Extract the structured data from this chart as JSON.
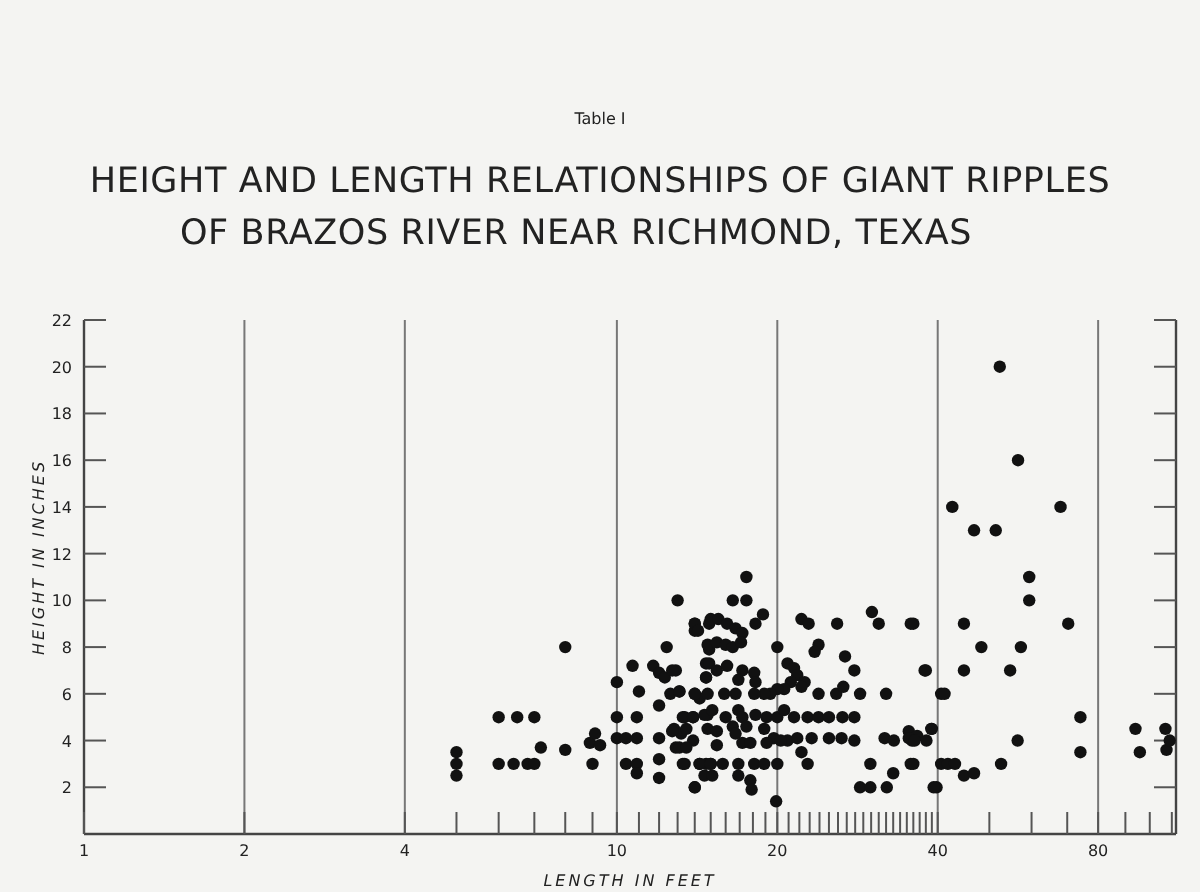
{
  "chart_data": {
    "type": "scatter",
    "title": "HEIGHT AND LENGTH RELATIONSHIPS OF GIANT RIPPLES\nOF BRAZOS RIVER NEAR RICHMOND, TEXAS",
    "annotations": [
      "Table I"
    ],
    "xlabel": "LENGTH IN FEET",
    "ylabel": "HEIGHT IN INCHES",
    "log": "x",
    "grid": "x",
    "marker": "circle",
    "xlim": [
      1,
      112
    ],
    "ylim": [
      0,
      22
    ],
    "xticks": [
      1,
      2,
      4,
      {
        "value": 5,
        "label": null
      },
      {
        "value": 6,
        "label": null
      },
      {
        "value": 7,
        "label": null
      },
      {
        "value": 8,
        "label": null
      },
      {
        "value": 9,
        "label": null
      },
      10,
      {
        "value": 11,
        "label": null
      },
      {
        "value": 12,
        "label": null
      },
      {
        "value": 13,
        "label": null
      },
      {
        "value": 14,
        "label": null
      },
      {
        "value": 15,
        "label": null
      },
      {
        "value": 16,
        "label": null
      },
      {
        "value": 17,
        "label": null
      },
      {
        "value": 18,
        "label": null
      },
      {
        "value": 19,
        "label": null
      },
      20,
      {
        "value": 21,
        "label": null
      },
      {
        "value": 22,
        "label": null
      },
      {
        "value": 23,
        "label": null
      },
      {
        "value": 24,
        "label": null
      },
      {
        "value": 25,
        "label": null
      },
      {
        "value": 26,
        "label": null
      },
      {
        "value": 27,
        "label": null
      },
      {
        "value": 28,
        "label": null
      },
      {
        "value": 29,
        "label": null
      },
      {
        "value": 30,
        "label": null
      },
      {
        "value": 31,
        "label": null
      },
      {
        "value": 32,
        "label": null
      },
      {
        "value": 33,
        "label": null
      },
      {
        "value": 34,
        "label": null
      },
      {
        "value": 35,
        "label": null
      },
      {
        "value": 36,
        "label": null
      },
      {
        "value": 37,
        "label": null
      },
      {
        "value": 38,
        "label": null
      },
      {
        "value": 39,
        "label": null
      },
      40,
      {
        "value": 50,
        "label": null
      },
      {
        "value": 60,
        "label": null
      },
      {
        "value": 70,
        "label": null
      },
      80,
      {
        "value": 90,
        "label": null
      },
      {
        "value": 100,
        "label": null
      },
      {
        "value": 110,
        "label": null
      }
    ],
    "yticks": [
      2,
      4,
      6,
      8,
      10,
      12,
      14,
      16,
      18,
      20,
      22
    ],
    "series": [
      {
        "color": "#111111",
        "x": [
          52.3,
          56.6,
          42.6,
          68,
          46.8,
          51.4,
          59.4,
          59.4,
          36,
          44.8,
          70.3,
          48.3,
          57.3,
          37.8,
          44.8,
          54.7,
          40.6,
          41.2,
          74.1,
          39,
          35.3,
          36.6,
          35.8,
          38.1,
          56.5,
          94,
          107,
          95.8,
          107.5,
          109,
          74.1,
          36,
          40.6,
          41.8,
          43.1,
          52.6,
          44.8,
          46.8,
          39.8,
          5,
          5,
          5,
          6,
          6.5,
          7,
          6,
          6.4,
          6.8,
          7,
          7.2,
          8,
          8,
          9,
          8.9,
          9.1,
          9.3,
          10,
          10,
          10,
          10.4,
          10.9,
          10.4,
          10.9,
          10.9,
          10.7,
          11,
          10.9,
          12,
          12,
          12,
          12.4,
          11.7,
          12,
          12.3,
          12.9,
          12,
          12.6,
          13.1,
          12.8,
          13.2,
          12.9,
          13.4,
          13.9,
          13.4,
          13.9,
          14,
          14.3,
          14.7,
          15,
          14,
          14,
          14.9,
          14.9,
          14.7,
          14.7,
          14,
          14.3,
          14.8,
          17.5,
          16.5,
          17.5,
          18.8,
          13,
          14,
          14.2,
          15,
          15.5,
          16.1,
          16.7,
          17.2,
          18.2,
          22.2,
          22.9,
          25.9,
          30.1,
          31,
          35.6,
          14.8,
          15.4,
          16,
          16.5,
          17.1,
          20,
          23.9,
          23.5,
          14.9,
          15.4,
          14.7,
          16.1,
          17.2,
          18.1,
          18.2,
          16.9,
          20.9,
          21.5,
          21.8,
          21.2,
          22.5,
          22.2,
          20.6,
          20,
          19.4,
          18.9,
          23.9,
          25.8,
          26.6,
          28.6,
          27.9,
          26.8,
          32,
          38,
          12.7,
          13.1,
          14,
          14.8,
          15.9,
          16.7,
          18.1,
          13.3,
          13.9,
          14.6,
          15.1,
          16,
          16.9,
          17.2,
          18.2,
          19.1,
          20,
          20.6,
          21.5,
          22.8,
          23.9,
          25,
          26.5,
          27.9,
          12.7,
          13.5,
          14.8,
          15.4,
          16.5,
          16.7,
          17.5,
          18.9,
          19.7,
          20.9,
          21.8,
          23.2,
          25,
          26.4,
          27.9,
          31.8,
          33.1,
          35.3,
          36.2,
          38.9,
          17.2,
          17.8,
          19.1,
          20.3,
          22.2,
          13.1,
          13.5,
          15.4,
          13.3,
          14.3,
          15,
          15.8,
          16.9,
          18.1,
          18.9,
          20,
          22.8,
          29.9,
          35.6,
          14.6,
          15.1,
          16.9,
          17.8,
          14,
          17.9,
          19.9,
          28.6,
          29.9,
          32.1,
          33,
          39.3
        ],
        "values": [
          20,
          16,
          14,
          14,
          13,
          13,
          11,
          10,
          9,
          9,
          9,
          8,
          8,
          7,
          7,
          7,
          6,
          6,
          5,
          4.5,
          4.4,
          4.2,
          4,
          4,
          4,
          4.5,
          4.5,
          3.5,
          3.6,
          4,
          3.5,
          3,
          3,
          3,
          3,
          3,
          2.5,
          2.6,
          2,
          3.5,
          3,
          2.5,
          5,
          5,
          5,
          3,
          3,
          3,
          3,
          3.7,
          8,
          3.6,
          3,
          3.9,
          4.3,
          3.8,
          6.5,
          5,
          4.1,
          4.1,
          4.1,
          3,
          3,
          2.6,
          7.2,
          6.1,
          5,
          2.4,
          4.1,
          3.2,
          8,
          7.2,
          6.9,
          6.7,
          7,
          5.5,
          6,
          6.1,
          4.5,
          4.3,
          3.7,
          5,
          5,
          3,
          4,
          2,
          3,
          3,
          3,
          9,
          8.7,
          9,
          7.9,
          7.3,
          6.7,
          6,
          5.8,
          5.1,
          11,
          10,
          10,
          9.4,
          10,
          9,
          8.7,
          9.2,
          9.2,
          9,
          8.8,
          8.6,
          9,
          9.2,
          9,
          9,
          9.5,
          9,
          9,
          8.1,
          8.2,
          8.1,
          8,
          8.2,
          8,
          8.1,
          7.8,
          7.3,
          7,
          6.7,
          7.2,
          7,
          6.9,
          6.5,
          6.6,
          7.3,
          7.1,
          6.8,
          6.5,
          6.5,
          6.3,
          6.2,
          6.2,
          6,
          6,
          6,
          6,
          6.3,
          6,
          7,
          7.6,
          6,
          7,
          7,
          6.1,
          6,
          6,
          6,
          6,
          6,
          5,
          5,
          5.1,
          5.3,
          5,
          5.3,
          5,
          5.1,
          5,
          5,
          5.3,
          5,
          5,
          5,
          5,
          5,
          5,
          4.4,
          4.5,
          4.5,
          4.4,
          4.6,
          4.3,
          4.6,
          4.5,
          4.1,
          4,
          4.1,
          4.1,
          4.1,
          4.1,
          4,
          4.1,
          4,
          4.1,
          4,
          4.5,
          3.9,
          3.9,
          3.9,
          4,
          3.5,
          3.7,
          3.7,
          3.8,
          3,
          3,
          3,
          3,
          3,
          3,
          3,
          3,
          3,
          3,
          3,
          2.5,
          2.5,
          2.5,
          2.3,
          2,
          1.9,
          1.4,
          2,
          2,
          2,
          2.6,
          2
        ]
      }
    ]
  }
}
